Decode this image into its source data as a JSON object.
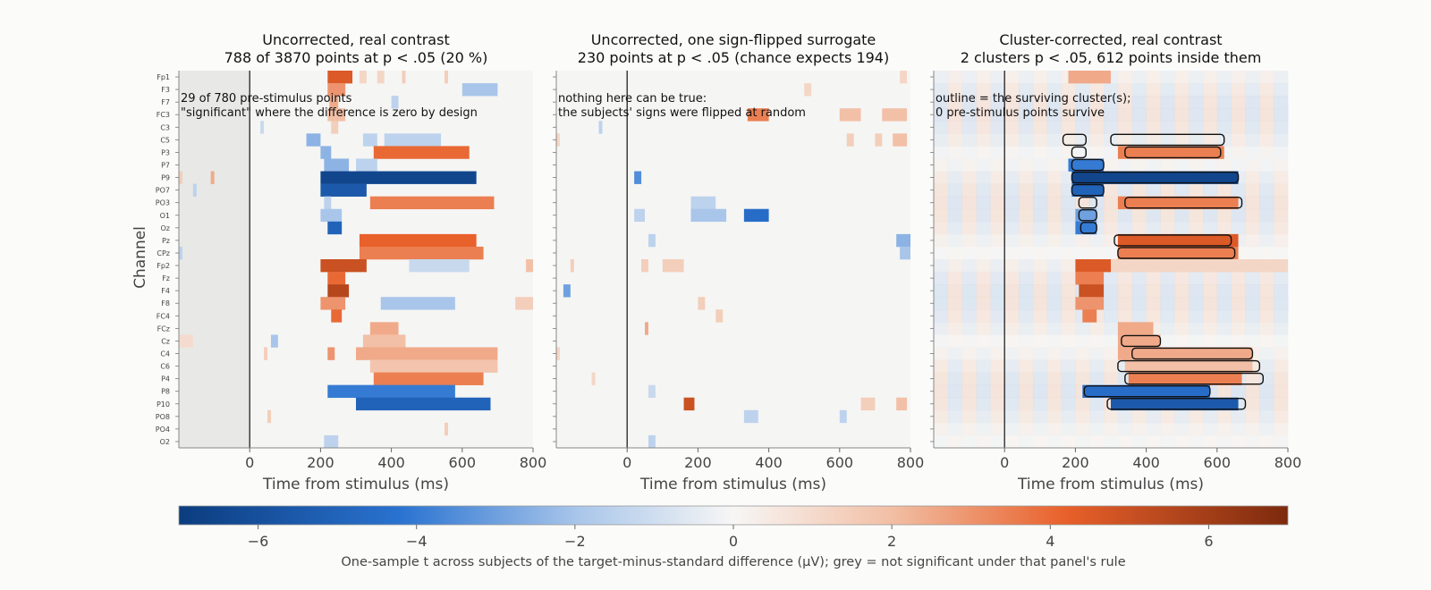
{
  "chart_data": {
    "type": "heatmap",
    "shared": {
      "ylabel": "Channel",
      "xlabel": "Time from stimulus (ms)",
      "xlim": [
        -200,
        800
      ],
      "xticks": [
        0,
        200,
        400,
        600,
        800
      ],
      "channels": [
        "Fp1",
        "F3",
        "F7",
        "FC3",
        "C3",
        "C5",
        "P3",
        "P7",
        "P9",
        "PO7",
        "PO3",
        "O1",
        "Oz",
        "Pz",
        "CPz",
        "Fp2",
        "Fz",
        "F4",
        "F8",
        "FC4",
        "FCz",
        "Cz",
        "C4",
        "C6",
        "P4",
        "P8",
        "P10",
        "PO8",
        "PO4",
        "O2"
      ],
      "color_scale": {
        "min": -7,
        "max": 7,
        "ticks": [
          -6,
          -4,
          -2,
          0,
          2,
          4,
          6
        ],
        "negative_color": "#0b3c7e",
        "positive_color": "#7c2a0e"
      },
      "colorbar_label": "One-sample t across subjects of the target-minus-standard difference (µV); grey = not significant under that panel's rule"
    },
    "panels": [
      {
        "title_line1": "Uncorrected, real contrast",
        "title_line2": "788 of 3870 points at p < .05 (20 %)",
        "note_line1": "29 of 780 pre-stimulus points",
        "note_line2": "\"significant\" where the difference is zero by design",
        "prestim_shaded": true,
        "show_ylabels": true,
        "blobs": [
          {
            "ch": "Fp1",
            "t0": 220,
            "t1": 290,
            "v": 4.5
          },
          {
            "ch": "Fp1",
            "t0": 310,
            "t1": 330,
            "v": 1.2
          },
          {
            "ch": "Fp1",
            "t0": 360,
            "t1": 380,
            "v": 1.2
          },
          {
            "ch": "Fp1",
            "t0": 430,
            "t1": 440,
            "v": 1.5
          },
          {
            "ch": "Fp1",
            "t0": 550,
            "t1": 560,
            "v": 1.5
          },
          {
            "ch": "F3",
            "t0": 220,
            "t1": 270,
            "v": 3.0
          },
          {
            "ch": "F3",
            "t0": 600,
            "t1": 700,
            "v": -2.0
          },
          {
            "ch": "F7",
            "t0": 225,
            "t1": 250,
            "v": 2.5
          },
          {
            "ch": "F7",
            "t0": 400,
            "t1": 420,
            "v": -1.5
          },
          {
            "ch": "FC3",
            "t0": 220,
            "t1": 270,
            "v": 2.0
          },
          {
            "ch": "C3",
            "t0": 230,
            "t1": 250,
            "v": 1.5
          },
          {
            "ch": "C3",
            "t0": 30,
            "t1": 40,
            "v": -1.2
          },
          {
            "ch": "C5",
            "t0": 160,
            "t1": 200,
            "v": -2.5
          },
          {
            "ch": "C5",
            "t0": 320,
            "t1": 360,
            "v": -1.5
          },
          {
            "ch": "C5",
            "t0": 380,
            "t1": 540,
            "v": -1.5
          },
          {
            "ch": "P3",
            "t0": 200,
            "t1": 230,
            "v": -2.5
          },
          {
            "ch": "P3",
            "t0": 350,
            "t1": 620,
            "v": 4.0
          },
          {
            "ch": "P7",
            "t0": 210,
            "t1": 280,
            "v": -2.5
          },
          {
            "ch": "P7",
            "t0": 300,
            "t1": 360,
            "v": -1.5
          },
          {
            "ch": "P9",
            "t0": 200,
            "t1": 640,
            "v": -6.5
          },
          {
            "ch": "P9",
            "t0": -200,
            "t1": -190,
            "v": 1.5
          },
          {
            "ch": "P9",
            "t0": -110,
            "t1": -100,
            "v": 2.5
          },
          {
            "ch": "PO7",
            "t0": 200,
            "t1": 330,
            "v": -5.5
          },
          {
            "ch": "PO7",
            "t0": -160,
            "t1": -150,
            "v": -1.5
          },
          {
            "ch": "PO3",
            "t0": 340,
            "t1": 690,
            "v": 3.5
          },
          {
            "ch": "PO3",
            "t0": 210,
            "t1": 230,
            "v": -1.5
          },
          {
            "ch": "O1",
            "t0": 200,
            "t1": 260,
            "v": -2.0
          },
          {
            "ch": "Oz",
            "t0": 220,
            "t1": 260,
            "v": -5.0
          },
          {
            "ch": "Pz",
            "t0": 310,
            "t1": 640,
            "v": 4.2
          },
          {
            "ch": "CPz",
            "t0": 310,
            "t1": 660,
            "v": 3.5
          },
          {
            "ch": "CPz",
            "t0": -200,
            "t1": -190,
            "v": -1.5
          },
          {
            "ch": "Fp2",
            "t0": 200,
            "t1": 330,
            "v": 5.0
          },
          {
            "ch": "Fp2",
            "t0": 450,
            "t1": 620,
            "v": -1.2
          },
          {
            "ch": "Fp2",
            "t0": 780,
            "t1": 800,
            "v": 2.0
          },
          {
            "ch": "Fz",
            "t0": 220,
            "t1": 270,
            "v": 4.0
          },
          {
            "ch": "F4",
            "t0": 220,
            "t1": 280,
            "v": 5.5
          },
          {
            "ch": "F8",
            "t0": 200,
            "t1": 270,
            "v": 3.0
          },
          {
            "ch": "F8",
            "t0": 370,
            "t1": 580,
            "v": -2.0
          },
          {
            "ch": "F8",
            "t0": 750,
            "t1": 800,
            "v": 1.5
          },
          {
            "ch": "FC4",
            "t0": 230,
            "t1": 260,
            "v": 4.0
          },
          {
            "ch": "FCz",
            "t0": 340,
            "t1": 420,
            "v": 2.5
          },
          {
            "ch": "Cz",
            "t0": 320,
            "t1": 440,
            "v": 2.0
          },
          {
            "ch": "Cz",
            "t0": 60,
            "t1": 80,
            "v": -2.0
          },
          {
            "ch": "Cz",
            "t0": -200,
            "t1": -160,
            "v": 1.0
          },
          {
            "ch": "C4",
            "t0": 300,
            "t1": 700,
            "v": 2.5
          },
          {
            "ch": "C4",
            "t0": 40,
            "t1": 50,
            "v": 1.5
          },
          {
            "ch": "C4",
            "t0": 220,
            "t1": 240,
            "v": 3.0
          },
          {
            "ch": "C6",
            "t0": 340,
            "t1": 700,
            "v": 1.8
          },
          {
            "ch": "P4",
            "t0": 350,
            "t1": 660,
            "v": 3.5
          },
          {
            "ch": "P8",
            "t0": 220,
            "t1": 580,
            "v": -4.0
          },
          {
            "ch": "P10",
            "t0": 300,
            "t1": 680,
            "v": -5.0
          },
          {
            "ch": "PO8",
            "t0": 50,
            "t1": 60,
            "v": 1.5
          },
          {
            "ch": "PO4",
            "t0": 550,
            "t1": 560,
            "v": 1.5
          },
          {
            "ch": "O2",
            "t0": 210,
            "t1": 250,
            "v": -1.5
          }
        ]
      },
      {
        "title_line1": "Uncorrected, one sign-flipped surrogate",
        "title_line2": "230 points at p < .05 (chance expects 194)",
        "note_line1": "nothing here can be true:",
        "note_line2": "the subjects' signs were flipped at random",
        "prestim_shaded": false,
        "show_ylabels": false,
        "blobs": [
          {
            "ch": "Fp1",
            "t0": 770,
            "t1": 790,
            "v": 1.2
          },
          {
            "ch": "F3",
            "t0": 500,
            "t1": 520,
            "v": 1.2
          },
          {
            "ch": "FC3",
            "t0": 340,
            "t1": 400,
            "v": 3.5
          },
          {
            "ch": "FC3",
            "t0": 600,
            "t1": 660,
            "v": 2.0
          },
          {
            "ch": "FC3",
            "t0": 720,
            "t1": 790,
            "v": 2.0
          },
          {
            "ch": "C3",
            "t0": -80,
            "t1": -70,
            "v": -1.5
          },
          {
            "ch": "C5",
            "t0": -200,
            "t1": -190,
            "v": 1.2
          },
          {
            "ch": "C5",
            "t0": 620,
            "t1": 640,
            "v": 1.5
          },
          {
            "ch": "C5",
            "t0": 700,
            "t1": 720,
            "v": 1.5
          },
          {
            "ch": "C5",
            "t0": 750,
            "t1": 790,
            "v": 2.0
          },
          {
            "ch": "P9",
            "t0": 20,
            "t1": 40,
            "v": -3.5
          },
          {
            "ch": "PO3",
            "t0": 180,
            "t1": 250,
            "v": -1.5
          },
          {
            "ch": "O1",
            "t0": 20,
            "t1": 50,
            "v": -1.5
          },
          {
            "ch": "O1",
            "t0": 180,
            "t1": 280,
            "v": -2.0
          },
          {
            "ch": "O1",
            "t0": 330,
            "t1": 400,
            "v": -4.5
          },
          {
            "ch": "Pz",
            "t0": 60,
            "t1": 80,
            "v": -1.5
          },
          {
            "ch": "Pz",
            "t0": 760,
            "t1": 800,
            "v": -2.5
          },
          {
            "ch": "CPz",
            "t0": 770,
            "t1": 800,
            "v": -2.0
          },
          {
            "ch": "Fp2",
            "t0": -160,
            "t1": -150,
            "v": 1.5
          },
          {
            "ch": "Fp2",
            "t0": 40,
            "t1": 60,
            "v": 1.5
          },
          {
            "ch": "Fp2",
            "t0": 100,
            "t1": 160,
            "v": 1.5
          },
          {
            "ch": "F4",
            "t0": -180,
            "t1": -160,
            "v": -3.0
          },
          {
            "ch": "F8",
            "t0": 200,
            "t1": 220,
            "v": 1.5
          },
          {
            "ch": "FC4",
            "t0": 250,
            "t1": 270,
            "v": 1.5
          },
          {
            "ch": "FCz",
            "t0": 50,
            "t1": 60,
            "v": 2.5
          },
          {
            "ch": "C4",
            "t0": -200,
            "t1": -190,
            "v": 1.2
          },
          {
            "ch": "P4",
            "t0": -100,
            "t1": -90,
            "v": 1.2
          },
          {
            "ch": "P8",
            "t0": 60,
            "t1": 80,
            "v": -1.2
          },
          {
            "ch": "P10",
            "t0": 160,
            "t1": 190,
            "v": 5.0
          },
          {
            "ch": "P10",
            "t0": 660,
            "t1": 700,
            "v": 1.5
          },
          {
            "ch": "P10",
            "t0": 760,
            "t1": 790,
            "v": 2.0
          },
          {
            "ch": "PO8",
            "t0": 330,
            "t1": 370,
            "v": -1.5
          },
          {
            "ch": "PO8",
            "t0": 600,
            "t1": 620,
            "v": -1.5
          },
          {
            "ch": "O2",
            "t0": 60,
            "t1": 80,
            "v": -1.5
          }
        ]
      },
      {
        "title_line1": "Cluster-corrected, real contrast",
        "title_line2": "2 clusters p < .05, 612 points inside them",
        "note_line1": "outline = the surviving cluster(s);",
        "note_line2": "0 pre-stimulus points survive",
        "prestim_shaded": false,
        "show_ylabels": false,
        "blobs": [
          {
            "ch": "Fp1",
            "t0": 180,
            "t1": 300,
            "v": 2.5
          },
          {
            "ch": "P3",
            "t0": 320,
            "t1": 620,
            "v": 3.5
          },
          {
            "ch": "P7",
            "t0": 180,
            "t1": 280,
            "v": -4.0
          },
          {
            "ch": "P9",
            "t0": 190,
            "t1": 660,
            "v": -6.5
          },
          {
            "ch": "PO7",
            "t0": 190,
            "t1": 280,
            "v": -5.0
          },
          {
            "ch": "PO3",
            "t0": 320,
            "t1": 660,
            "v": 3.5
          },
          {
            "ch": "O1",
            "t0": 200,
            "t1": 260,
            "v": -3.0
          },
          {
            "ch": "Oz",
            "t0": 200,
            "t1": 260,
            "v": -4.0
          },
          {
            "ch": "Pz",
            "t0": 320,
            "t1": 660,
            "v": 4.5
          },
          {
            "ch": "CPz",
            "t0": 320,
            "t1": 660,
            "v": 3.5
          },
          {
            "ch": "Fp2",
            "t0": 200,
            "t1": 300,
            "v": 4.5
          },
          {
            "ch": "Fp2",
            "t0": 300,
            "t1": 800,
            "v": 1.2
          },
          {
            "ch": "Fz",
            "t0": 200,
            "t1": 280,
            "v": 3.5
          },
          {
            "ch": "F4",
            "t0": 210,
            "t1": 280,
            "v": 5.0
          },
          {
            "ch": "F8",
            "t0": 200,
            "t1": 280,
            "v": 3.0
          },
          {
            "ch": "FC4",
            "t0": 220,
            "t1": 260,
            "v": 3.5
          },
          {
            "ch": "FCz",
            "t0": 320,
            "t1": 420,
            "v": 2.5
          },
          {
            "ch": "Cz",
            "t0": 320,
            "t1": 440,
            "v": 2.5
          },
          {
            "ch": "C4",
            "t0": 320,
            "t1": 700,
            "v": 2.5
          },
          {
            "ch": "C6",
            "t0": 340,
            "t1": 700,
            "v": 2.0
          },
          {
            "ch": "P4",
            "t0": 350,
            "t1": 670,
            "v": 3.5
          },
          {
            "ch": "P8",
            "t0": 220,
            "t1": 580,
            "v": -4.5
          },
          {
            "ch": "P10",
            "t0": 300,
            "t1": 660,
            "v": -5.5
          }
        ],
        "clusters": [
          {
            "sign": "negative",
            "segments": [
              {
                "ch": "C5",
                "t0": 165,
                "t1": 230
              },
              {
                "ch": "P3",
                "t0": 190,
                "t1": 230
              },
              {
                "ch": "P7",
                "t0": 190,
                "t1": 280
              },
              {
                "ch": "P9",
                "t0": 190,
                "t1": 660
              },
              {
                "ch": "PO7",
                "t0": 190,
                "t1": 280
              },
              {
                "ch": "PO3",
                "t0": 210,
                "t1": 260
              },
              {
                "ch": "O1",
                "t0": 210,
                "t1": 260
              },
              {
                "ch": "Oz",
                "t0": 215,
                "t1": 260
              },
              {
                "ch": "P8",
                "t0": 225,
                "t1": 580
              },
              {
                "ch": "P10",
                "t0": 290,
                "t1": 680
              }
            ]
          },
          {
            "sign": "positive",
            "segments": [
              {
                "ch": "C5",
                "t0": 300,
                "t1": 620
              },
              {
                "ch": "P3",
                "t0": 340,
                "t1": 610
              },
              {
                "ch": "PO3",
                "t0": 340,
                "t1": 670
              },
              {
                "ch": "Pz",
                "t0": 310,
                "t1": 640
              },
              {
                "ch": "CPz",
                "t0": 320,
                "t1": 650
              },
              {
                "ch": "Cz",
                "t0": 330,
                "t1": 440
              },
              {
                "ch": "C4",
                "t0": 360,
                "t1": 700
              },
              {
                "ch": "C6",
                "t0": 320,
                "t1": 720
              },
              {
                "ch": "P4",
                "t0": 340,
                "t1": 730
              }
            ]
          }
        ]
      }
    ]
  }
}
